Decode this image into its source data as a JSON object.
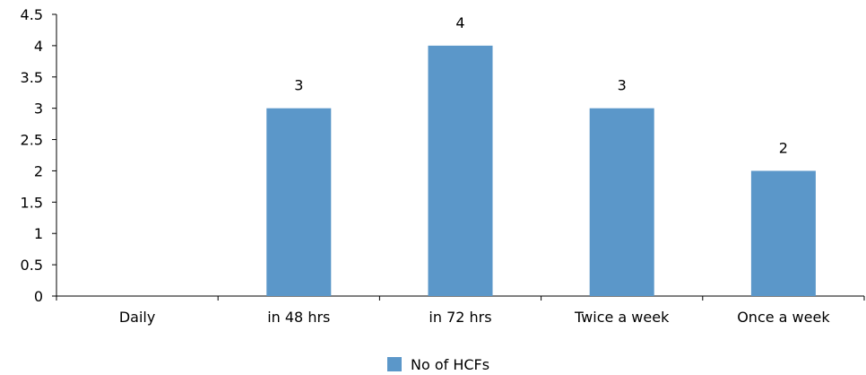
{
  "chart_data": {
    "type": "bar",
    "categories": [
      "Daily",
      "in 48 hrs",
      "in 72 hrs",
      "Twice a week",
      "Once a week"
    ],
    "series": [
      {
        "name": "No of HCFs",
        "values": [
          0,
          3,
          4,
          3,
          2
        ]
      }
    ],
    "data_labels": [
      "",
      "3",
      "4",
      "3",
      "2"
    ],
    "y_ticks": [
      "0",
      "0.5",
      "1",
      "1.5",
      "2",
      "2.5",
      "3",
      "3.5",
      "4",
      "4.5"
    ],
    "ylim": [
      0,
      4.5
    ],
    "ystep": 0.5,
    "grid": false,
    "legend_position": "bottom",
    "colors": {
      "bar": "#5b97c9",
      "axis": "#000000"
    }
  }
}
